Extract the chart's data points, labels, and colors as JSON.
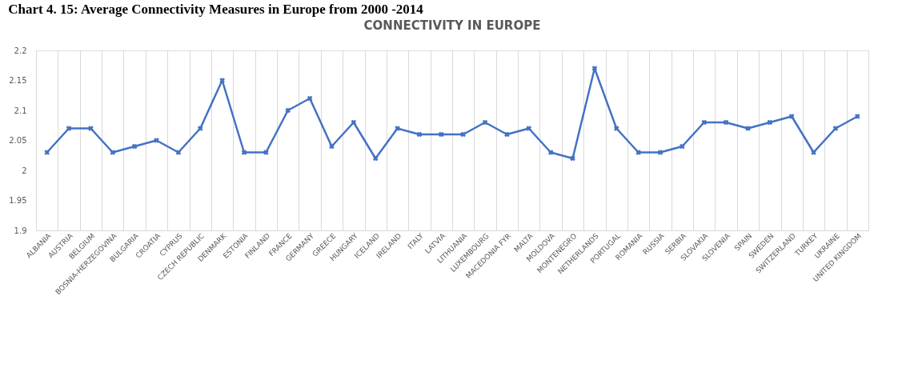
{
  "chart_data": {
    "type": "line",
    "title": "Chart 4. 15: Average Connectivity Measures in Europe from 2000 -2014",
    "subtitle": "CONNECTIVITY IN EUROPE",
    "categories": [
      "ALBANIA",
      "AUSTRIA",
      "BELGIUM",
      "BOSNIA-HERZEGOVINA",
      "BULGARIA",
      "CROATIA",
      "CYPRUS",
      "CZECH REPUBLIC",
      "DENMARK",
      "ESTONIA",
      "FINLAND",
      "FRANCE",
      "GERMANY",
      "GREECE",
      "HUNGARY",
      "ICELAND",
      "IRELAND",
      "ITALY",
      "LATVIA",
      "LITHUANIA",
      "LUXEMBOURG",
      "MACEDONIA FYR",
      "MALTA",
      "MOLDOVA",
      "MONTENEGRO",
      "NETHERLANDS",
      "PORTUGAL",
      "ROMANIA",
      "RUSSIA",
      "SERBIA",
      "SLOVAKIA",
      "SLOVENIA",
      "SPAIN",
      "SWEDEN",
      "SWITZERLAND",
      "TURKEY",
      "UKRAINE",
      "UNITED KINGDOM"
    ],
    "series": [
      {
        "color": "#4472c4",
        "values": [
          2.03,
          2.07,
          2.07,
          2.03,
          2.04,
          2.05,
          2.03,
          2.07,
          2.15,
          2.03,
          2.03,
          2.1,
          2.12,
          2.04,
          2.08,
          2.02,
          2.07,
          2.06,
          2.06,
          2.06,
          2.08,
          2.06,
          2.07,
          2.03,
          2.02,
          2.17,
          2.07,
          2.03,
          2.03,
          2.04,
          2.08,
          2.08,
          2.07,
          2.08,
          2.09,
          2.03,
          2.07,
          2.09
        ]
      }
    ],
    "ylim": [
      1.9,
      2.2
    ],
    "yticks": [
      1.9,
      1.95,
      2,
      2.05,
      2.1,
      2.15,
      2.2
    ],
    "grid": "x",
    "marker": "cross",
    "line_style": "solid",
    "legend": false
  }
}
